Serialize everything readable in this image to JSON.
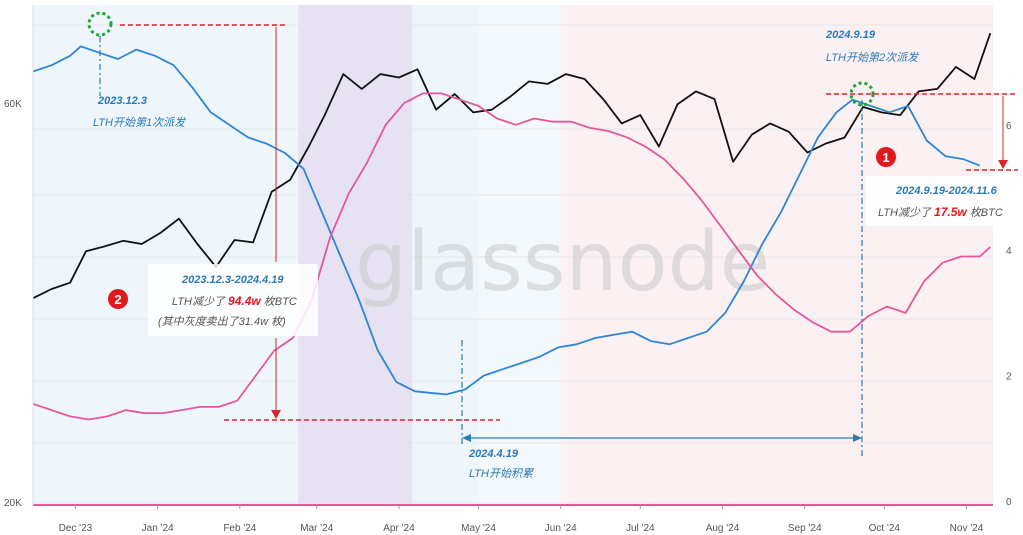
{
  "watermark": "glassnode",
  "colors": {
    "price": "#111111",
    "lth_supply": "#2e86d6",
    "second": "#e5579a",
    "annotation_blue": "#2a7ab8",
    "annotation_red": "#e0191e",
    "highlight_purple": "#e6e0f1",
    "grid": "#e6e6e6"
  },
  "chart_data": {
    "type": "line",
    "x_axis": {
      "range": [
        "2023-11-15",
        "2024-11-11"
      ],
      "ticks": [
        "Dec '23",
        "Jan '24",
        "Feb '24",
        "Mar '24",
        "Apr '24",
        "May '24",
        "Jun '24",
        "Jul '24",
        "Aug '24",
        "Sep '24",
        "Oct '24",
        "Nov '24"
      ]
    },
    "y_axis_left": {
      "scale": "log",
      "ticks": [
        "20K",
        "60K"
      ]
    },
    "y_axis_right": {
      "ticks": [
        "0",
        "2",
        "4",
        "6"
      ]
    },
    "grid": true,
    "legend": "none",
    "shaded_ranges": [
      {
        "start": "2024-02-23",
        "end": "2024-04-06",
        "color": "#e6e0f1"
      }
    ],
    "series": [
      {
        "color": "#111111",
        "x": [
          "2023-11-15",
          "2023-11-22",
          "2023-11-29",
          "2023-12-05",
          "2023-12-12",
          "2023-12-19",
          "2023-12-26",
          "2024-01-02",
          "2024-01-09",
          "2024-01-16",
          "2024-01-23",
          "2024-01-30",
          "2024-02-06",
          "2024-02-13",
          "2024-02-20",
          "2024-02-27",
          "2024-03-04",
          "2024-03-11",
          "2024-03-18",
          "2024-03-25",
          "2024-04-01",
          "2024-04-08",
          "2024-04-15",
          "2024-04-22",
          "2024-04-29",
          "2024-05-06",
          "2024-05-13",
          "2024-05-20",
          "2024-05-27",
          "2024-06-03",
          "2024-06-10",
          "2024-06-17",
          "2024-06-24",
          "2024-07-01",
          "2024-07-08",
          "2024-07-15",
          "2024-07-22",
          "2024-07-29",
          "2024-08-05",
          "2024-08-12",
          "2024-08-19",
          "2024-08-26",
          "2024-09-02",
          "2024-09-09",
          "2024-09-16",
          "2024-09-23",
          "2024-09-30",
          "2024-10-07",
          "2024-10-14",
          "2024-10-21",
          "2024-10-28",
          "2024-11-04",
          "2024-11-10"
        ],
        "y": [
          36500,
          37500,
          38200,
          41900,
          42500,
          43200,
          42800,
          44200,
          46100,
          42800,
          40000,
          43300,
          43000,
          49900,
          51700,
          57000,
          62500,
          70500,
          67500,
          70500,
          69800,
          71500,
          63500,
          66500,
          63000,
          63500,
          66000,
          69000,
          68500,
          70500,
          69500,
          65500,
          61000,
          62500,
          57000,
          64500,
          67000,
          65500,
          54500,
          59000,
          61000,
          59500,
          56000,
          57500,
          58500,
          64000,
          63000,
          62500,
          67000,
          67500,
          72000,
          69500,
          79500
        ]
      },
      {
        "color": "#2e86d6",
        "x": [
          "2023-11-15",
          "2023-11-22",
          "2023-11-29",
          "2023-12-03",
          "2023-12-10",
          "2023-12-17",
          "2023-12-24",
          "2023-12-31",
          "2024-01-07",
          "2024-01-14",
          "2024-01-21",
          "2024-01-28",
          "2024-02-04",
          "2024-02-11",
          "2024-02-18",
          "2024-02-25",
          "2024-03-03",
          "2024-03-10",
          "2024-03-17",
          "2024-03-24",
          "2024-03-31",
          "2024-04-07",
          "2024-04-14",
          "2024-04-19",
          "2024-04-26",
          "2024-05-03",
          "2024-05-10",
          "2024-05-17",
          "2024-05-24",
          "2024-05-31",
          "2024-06-07",
          "2024-06-14",
          "2024-06-21",
          "2024-06-28",
          "2024-07-05",
          "2024-07-12",
          "2024-07-19",
          "2024-07-26",
          "2024-08-02",
          "2024-08-09",
          "2024-08-16",
          "2024-08-23",
          "2024-08-30",
          "2024-09-06",
          "2024-09-13",
          "2024-09-19",
          "2024-09-26",
          "2024-10-03",
          "2024-10-10",
          "2024-10-17",
          "2024-10-24",
          "2024-10-31",
          "2024-11-06"
        ],
        "y": [
          6.85,
          6.95,
          7.1,
          7.25,
          7.15,
          7.05,
          7.2,
          7.1,
          6.95,
          6.6,
          6.2,
          6.0,
          5.8,
          5.7,
          5.55,
          5.3,
          4.6,
          3.9,
          3.2,
          2.4,
          1.9,
          1.75,
          1.72,
          1.7,
          1.78,
          2.0,
          2.1,
          2.2,
          2.3,
          2.45,
          2.5,
          2.6,
          2.65,
          2.7,
          2.55,
          2.5,
          2.6,
          2.7,
          3.0,
          3.5,
          4.1,
          4.6,
          5.2,
          5.8,
          6.2,
          6.4,
          6.3,
          6.2,
          6.3,
          5.75,
          5.5,
          5.45,
          5.35
        ]
      },
      {
        "color": "#e5579a",
        "x": [
          "2023-11-15",
          "2023-11-22",
          "2023-11-29",
          "2023-12-06",
          "2023-12-13",
          "2023-12-20",
          "2023-12-27",
          "2024-01-03",
          "2024-01-10",
          "2024-01-17",
          "2024-01-24",
          "2024-01-31",
          "2024-02-07",
          "2024-02-14",
          "2024-02-21",
          "2024-02-28",
          "2024-03-06",
          "2024-03-13",
          "2024-03-20",
          "2024-03-27",
          "2024-04-03",
          "2024-04-10",
          "2024-04-17",
          "2024-04-24",
          "2024-05-01",
          "2024-05-08",
          "2024-05-15",
          "2024-05-22",
          "2024-05-29",
          "2024-06-05",
          "2024-06-12",
          "2024-06-19",
          "2024-06-26",
          "2024-07-03",
          "2024-07-10",
          "2024-07-17",
          "2024-07-24",
          "2024-07-31",
          "2024-08-07",
          "2024-08-14",
          "2024-08-21",
          "2024-08-28",
          "2024-09-04",
          "2024-09-11",
          "2024-09-18",
          "2024-09-25",
          "2024-10-02",
          "2024-10-09",
          "2024-10-16",
          "2024-10-23",
          "2024-10-30",
          "2024-11-06",
          "2024-11-10"
        ],
        "y": [
          1.55,
          1.45,
          1.35,
          1.3,
          1.35,
          1.45,
          1.4,
          1.4,
          1.45,
          1.5,
          1.5,
          1.6,
          2.0,
          2.4,
          2.6,
          3.2,
          4.2,
          4.9,
          5.4,
          6.0,
          6.35,
          6.5,
          6.5,
          6.4,
          6.3,
          6.1,
          6.0,
          6.1,
          6.05,
          6.05,
          5.95,
          5.9,
          5.8,
          5.65,
          5.45,
          5.15,
          4.8,
          4.4,
          4.0,
          3.6,
          3.3,
          3.05,
          2.85,
          2.7,
          2.7,
          2.95,
          3.1,
          3.0,
          3.5,
          3.8,
          3.9,
          3.9,
          4.05
        ]
      }
    ],
    "annotations": [
      {
        "date": "2023.12.3",
        "text": "LTH开始第1次派发"
      },
      {
        "date": "2023.12.3-2024.4.19",
        "text_before": "LTH减少了",
        "value": "94.4w",
        "text_after": "枚BTC",
        "note": "(其中灰度卖出了31.4w 枚)"
      },
      {
        "date": "2024.4.19",
        "text": "LTH开始积累"
      },
      {
        "date": "2024.9.19",
        "text": "LTH开始第2次派发"
      },
      {
        "date": "2024.9.19-2024.11.6",
        "text_before": "LTH减少了",
        "value": "17.5w",
        "text_after": "枚BTC"
      }
    ],
    "badges": [
      "2",
      "1"
    ]
  }
}
